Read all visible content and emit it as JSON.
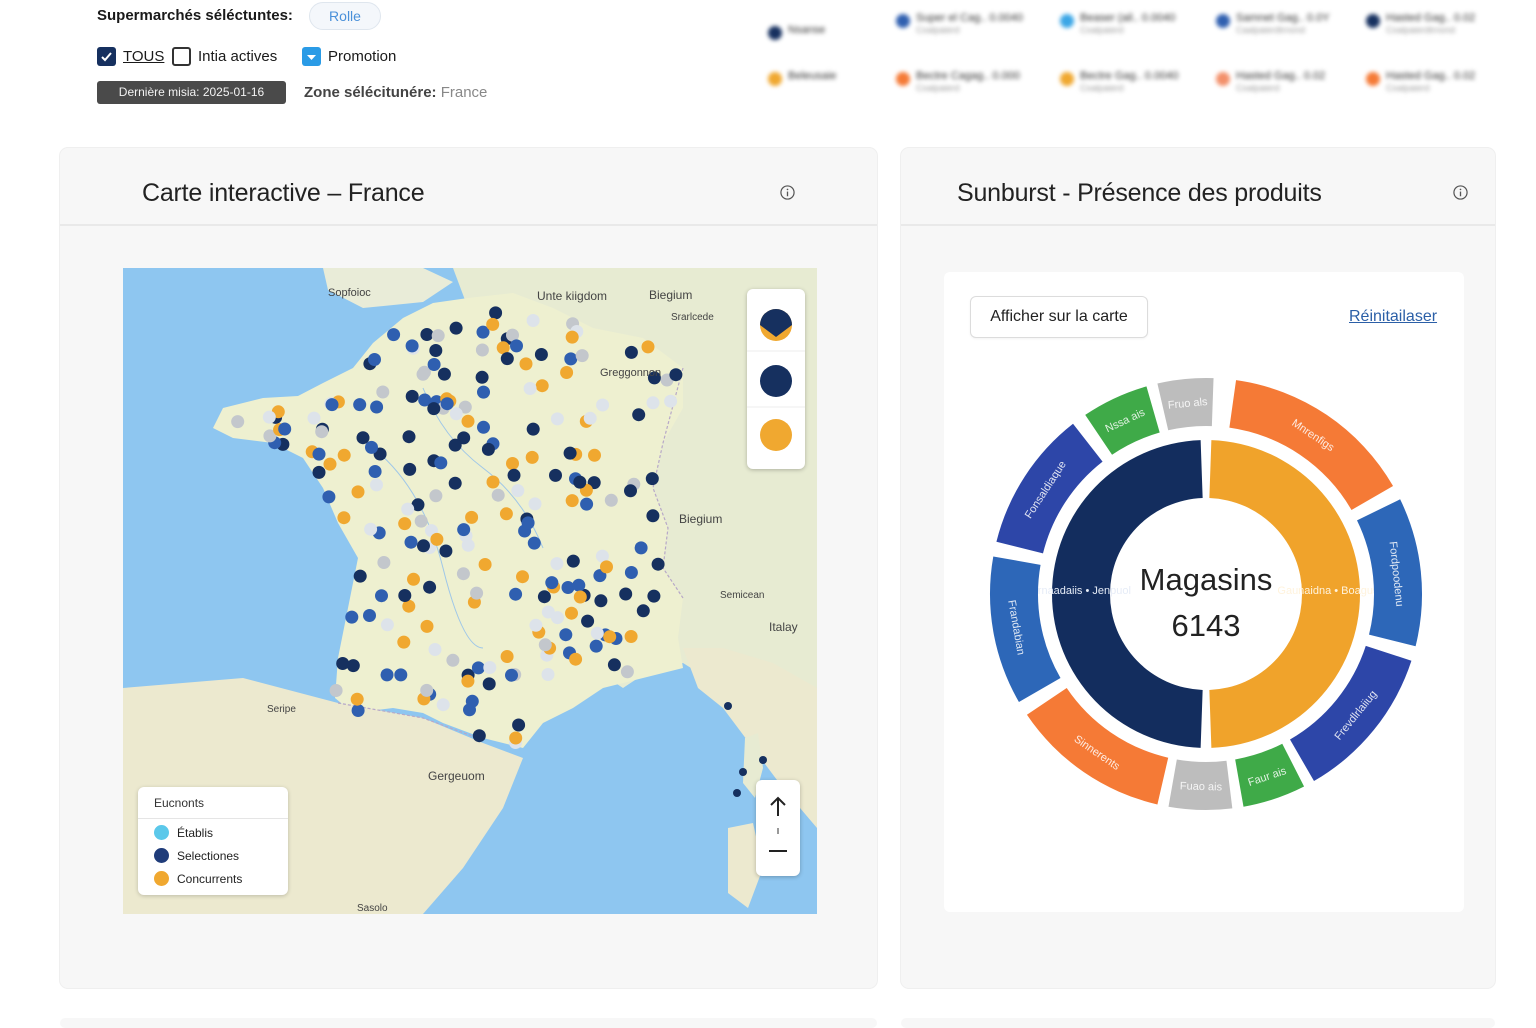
{
  "filters": {
    "label": "Supermarchés séléctuntes:",
    "pill": "Rolle",
    "checkboxes": [
      {
        "label": "TOUS",
        "checked": true,
        "color": "#16305f"
      },
      {
        "label": "Intia actives",
        "checked": false,
        "color": "#333333"
      },
      {
        "label": "Promotion",
        "checked": true,
        "color": "#2a9be6"
      }
    ],
    "last_update": "Dernière misia: 2025-01-16",
    "zone_label": "Zone sélécitunére:",
    "zone_value": "France"
  },
  "map_panel": {
    "title": "Carte interactive – France",
    "labels": {
      "uk": "Unte kiigdom",
      "belgium_top": "Biegium",
      "region_ne": "Greggonnon",
      "belgium_mid": "Biegium",
      "region_se": "Semicean",
      "italy": "Italay",
      "sea_s": "Gergeuom",
      "corner_nw": "Sopfoioc",
      "region_nne": "Srarlcede",
      "region_sw": "Seripe",
      "bottom_nonlabel": "Sasolo"
    },
    "legend": {
      "title": "Eucnonts",
      "items": [
        {
          "label": "Établis",
          "color": "#5bc8ea"
        },
        {
          "label": "Selectiones",
          "color": "#1f3c7a"
        },
        {
          "label": "Concurrents",
          "color": "#f0a830"
        }
      ]
    },
    "dot_colors": {
      "navy": "#16305f",
      "blue": "#2f5fb0",
      "orange": "#f0a830",
      "grey": "#c3c7cc",
      "light": "#dde3ea"
    }
  },
  "sunburst_panel": {
    "title": "Sunburst - Présence des produits",
    "show_button": "Afficher sur la carte",
    "reset_link": "Réinitailaser",
    "center": {
      "label": "Magasins",
      "value": "6143"
    },
    "inner_ring": [
      {
        "label": "Frnaadaiis • Jenpuol",
        "color": "#132d5e",
        "share": 0.5
      },
      {
        "label": "Gaunaidna • Boaguse",
        "color": "#f0a32b",
        "share": 0.5
      }
    ],
    "outer_ring": [
      {
        "label": "Mnrenfigs",
        "color": "#f57a36"
      },
      {
        "label": "Fordpoodenu",
        "color": "#2d67b8"
      },
      {
        "label": "Frevdlrlaiiug",
        "color": "#2d46a8"
      },
      {
        "label": "Faur ais",
        "color": "#3faa48"
      },
      {
        "label": "Fuao ais",
        "color": "#bdbdbd"
      },
      {
        "label": "Sinnerents",
        "color": "#f57a36"
      },
      {
        "label": "Frandabian",
        "color": "#2d67b8"
      },
      {
        "label": "Fonsaldiaque",
        "color": "#2d46a8"
      },
      {
        "label": "Nssa ais",
        "color": "#3faa48"
      },
      {
        "label": "Fruo als",
        "color": "#bdbdbd"
      }
    ]
  },
  "blurred_legend": [
    {
      "label": "Nsanse",
      "color": "#16305f",
      "sub": ""
    },
    {
      "label": "Beleusaie",
      "color": "#f0a830",
      "sub": ""
    },
    {
      "label": "Super el Cag.. 0.0040",
      "color": "#2f5fb0",
      "sub": "Coalpaierd"
    },
    {
      "label": "Beaser (ail.. 0.0040",
      "color": "#3aa6e6",
      "sub": "Coalpaierd"
    },
    {
      "label": "Samnet Gag.. 0.0Y",
      "color": "#2f5fb0",
      "sub": "Caalpaierdtrnond"
    },
    {
      "label": "Hasted Gag.. 0.02",
      "color": "#16305f",
      "sub": "Coalpaierdtrnond"
    },
    {
      "label": "Bectre Cagag.. 0.000",
      "color": "#f57a36",
      "sub": "Coalpaierd"
    },
    {
      "label": "Bectre Gag.. 0.0040",
      "color": "#f0a830",
      "sub": "Coalpaierd"
    },
    {
      "label": "Hasted Gag.. 0.02",
      "color": "#f3906a",
      "sub": "Coalpaierd"
    },
    {
      "label": "Hasted Gag.. 0.02",
      "color": "#f57a36",
      "sub": "Coalpaierd"
    }
  ]
}
